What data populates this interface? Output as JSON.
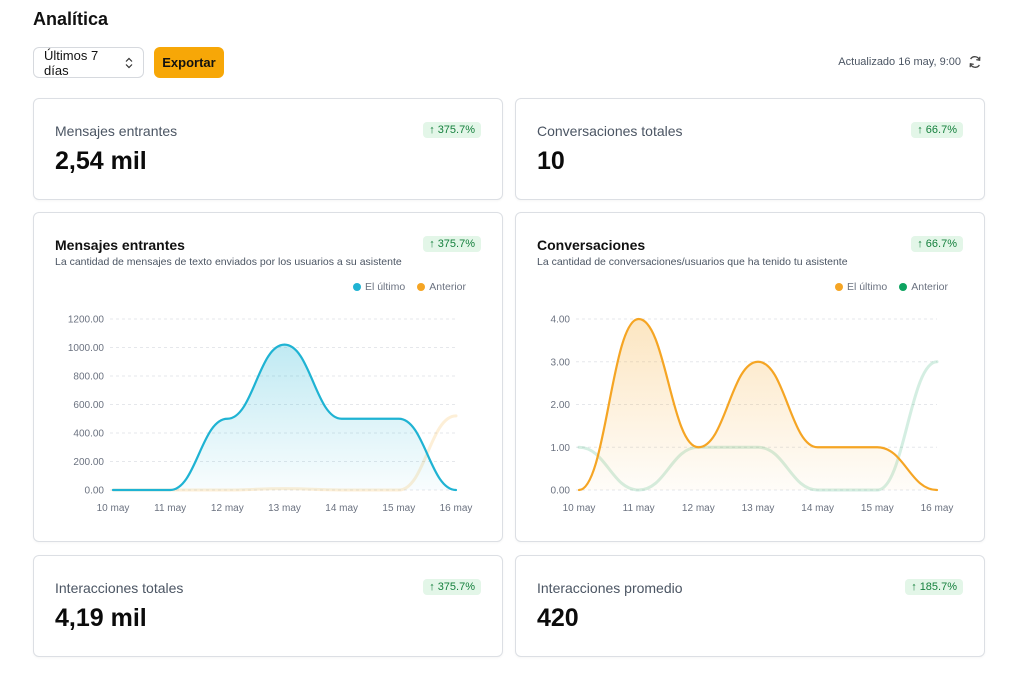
{
  "page": {
    "title": "Analítica"
  },
  "toolbar": {
    "range_label": "Últimos 7 días",
    "export_label": "Exportar",
    "updated_text": "Actualizado 16 may, 9:00"
  },
  "icons": {
    "range_chevron": "chevron-up-down-icon",
    "refresh": "refresh-icon",
    "badge_arrow": "arrow-up-icon"
  },
  "colors": {
    "accent": "#f7a707",
    "current_series": "#1fb3d3",
    "orange": "#f5a524",
    "green": "#0ea360",
    "badge_bg": "#e3f6e8",
    "badge_text": "#15803d"
  },
  "stats": {
    "incoming": {
      "label": "Mensajes entrantes",
      "value": "2,54 mil",
      "change": "375.7%"
    },
    "conversations": {
      "label": "Conversaciones totales",
      "value": "10",
      "change": "66.7%"
    },
    "interactions": {
      "label": "Interacciones totales",
      "value": "4,19 mil",
      "change": "375.7%"
    },
    "avg_interactions": {
      "label": "Interacciones promedio",
      "value": "420",
      "change": "185.7%"
    }
  },
  "charts": {
    "messages": {
      "title": "Mensajes entrantes",
      "subtitle": "La cantidad de mensajes de texto enviados por los usuarios a su asistente",
      "change": "375.7%",
      "legend": [
        "El último",
        "Anterior"
      ]
    },
    "conversations": {
      "title": "Conversaciones",
      "subtitle": "La cantidad de conversaciones/usuarios que ha tenido tu asistente",
      "change": "66.7%",
      "legend": [
        "El último",
        "Anterior"
      ]
    }
  },
  "chart_data": [
    {
      "type": "area",
      "title": "Mensajes entrantes",
      "categories": [
        "10 may",
        "11 may",
        "12 may",
        "13 may",
        "14 may",
        "15 may",
        "16 may"
      ],
      "y_ticks": [
        "0.00",
        "200.00",
        "400.00",
        "600.00",
        "800.00",
        "1000.00",
        "1200.00"
      ],
      "ylim": [
        0,
        1200
      ],
      "grid": true,
      "legend_position": "top-right",
      "series": [
        {
          "name": "El último",
          "color": "#1fb3d3",
          "values": [
            0,
            0,
            500,
            1020,
            500,
            500,
            0
          ]
        },
        {
          "name": "Anterior",
          "color": "#f5a524",
          "values": [
            0,
            0,
            0,
            10,
            0,
            0,
            520
          ]
        }
      ]
    },
    {
      "type": "area",
      "title": "Conversaciones",
      "categories": [
        "10 may",
        "11 may",
        "12 may",
        "13 may",
        "14 may",
        "15 may",
        "16 may"
      ],
      "y_ticks": [
        "0.00",
        "1.00",
        "2.00",
        "3.00",
        "4.00"
      ],
      "ylim": [
        0,
        4
      ],
      "grid": true,
      "legend_position": "top-right",
      "series": [
        {
          "name": "El último",
          "color": "#f5a524",
          "values": [
            0,
            4,
            1,
            3,
            1,
            1,
            0
          ]
        },
        {
          "name": "Anterior",
          "color": "#0ea360",
          "values": [
            1,
            0,
            1,
            1,
            0,
            0,
            3
          ]
        }
      ]
    }
  ]
}
